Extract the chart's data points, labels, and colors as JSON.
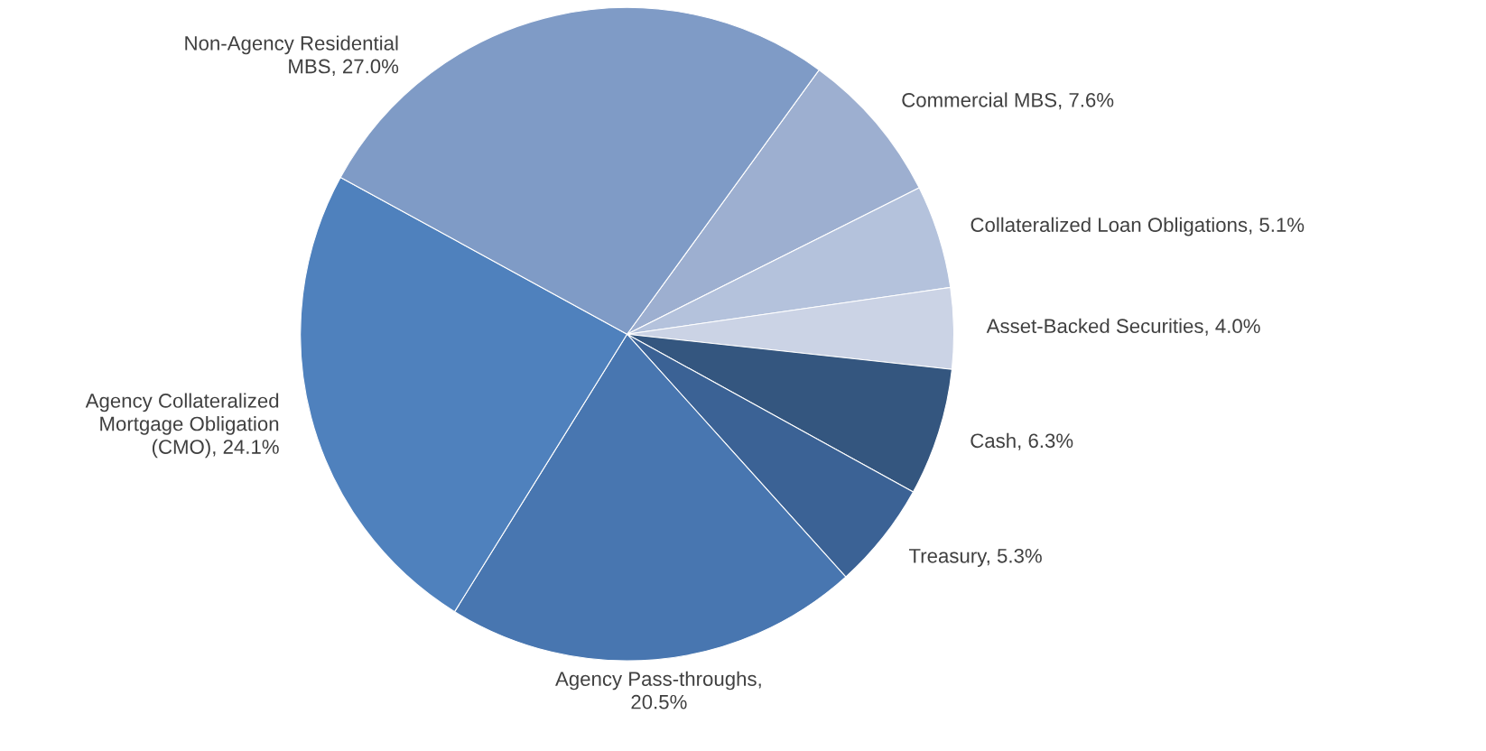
{
  "chart_data": {
    "type": "pie",
    "categories": [
      "Commercial MBS",
      "Collateralized Loan Obligations",
      "Asset-Backed Securities",
      "Cash",
      "Treasury",
      "Agency Pass-throughs",
      "Agency Collateralized Mortgage Obligation (CMO)",
      "Non-Agency Residential MBS"
    ],
    "values": [
      7.6,
      5.1,
      4.0,
      6.3,
      5.3,
      20.5,
      24.1,
      27.0
    ],
    "value_labels": [
      ", 7.6%",
      ", 5.1%",
      ", 4.0%",
      ", 6.3%",
      ", 5.3%",
      ", 20.5%",
      ", 24.1%",
      ", 27.0%"
    ],
    "colors": [
      "#9dafd0",
      "#b4c2dc",
      "#cbd3e5",
      "#34567f",
      "#3b6295",
      "#4876b0",
      "#4f81bd",
      "#7f9bc6"
    ]
  }
}
